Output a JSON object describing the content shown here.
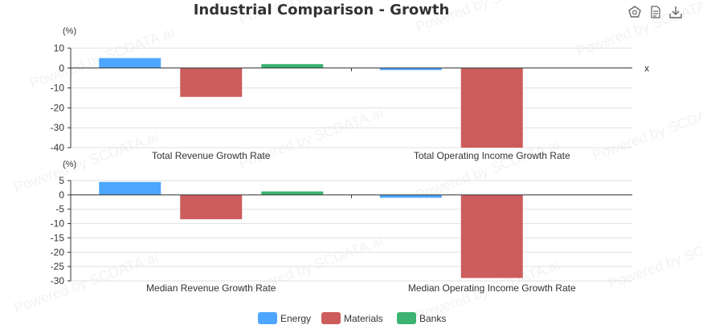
{
  "toolbar": {
    "icons": [
      "restore-icon",
      "data-view-icon",
      "save-image-icon"
    ]
  },
  "watermark": "Powered by SCDATA.ai",
  "chart_data": {
    "type": "bar",
    "title": "Industrial Comparison - Growth",
    "legend": {
      "placement": "bottom-center",
      "entries": [
        "Energy",
        "Materials",
        "Banks"
      ]
    },
    "colors": {
      "Energy": "#4da6ff",
      "Materials": "#cd5c5c",
      "Banks": "#3cb371"
    },
    "panels": [
      {
        "unit_label": "(%)",
        "x_axis_name": "x",
        "ylim": [
          -40,
          10
        ],
        "yticks": [
          10,
          0,
          -10,
          -20,
          -30,
          -40
        ],
        "categories": [
          "Total Revenue Growth Rate",
          "Total Operating Income Growth Rate"
        ],
        "series": [
          {
            "name": "Energy",
            "values": [
              5,
              -1
            ]
          },
          {
            "name": "Materials",
            "values": [
              -14.5,
              -40
            ]
          },
          {
            "name": "Banks",
            "values": [
              2,
              null
            ]
          }
        ]
      },
      {
        "unit_label": "(%)",
        "x_axis_name": "",
        "ylim": [
          -30,
          5
        ],
        "yticks": [
          5,
          0,
          -5,
          -10,
          -15,
          -20,
          -25,
          -30
        ],
        "categories": [
          "Median Revenue Growth Rate",
          "Median Operating Income Growth Rate"
        ],
        "series": [
          {
            "name": "Energy",
            "values": [
              4.5,
              -1
            ]
          },
          {
            "name": "Materials",
            "values": [
              -8.5,
              -29
            ]
          },
          {
            "name": "Banks",
            "values": [
              1.2,
              null
            ]
          }
        ]
      }
    ]
  }
}
